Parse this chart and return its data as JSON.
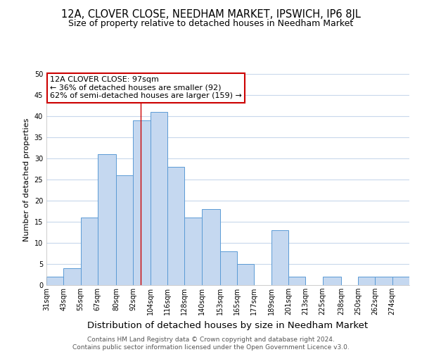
{
  "title": "12A, CLOVER CLOSE, NEEDHAM MARKET, IPSWICH, IP6 8JL",
  "subtitle": "Size of property relative to detached houses in Needham Market",
  "xlabel": "Distribution of detached houses by size in Needham Market",
  "ylabel": "Number of detached properties",
  "bin_labels": [
    "31sqm",
    "43sqm",
    "55sqm",
    "67sqm",
    "80sqm",
    "92sqm",
    "104sqm",
    "116sqm",
    "128sqm",
    "140sqm",
    "153sqm",
    "165sqm",
    "177sqm",
    "189sqm",
    "201sqm",
    "213sqm",
    "225sqm",
    "238sqm",
    "250sqm",
    "262sqm",
    "274sqm"
  ],
  "bin_edges": [
    31,
    43,
    55,
    67,
    80,
    92,
    104,
    116,
    128,
    140,
    153,
    165,
    177,
    189,
    201,
    213,
    225,
    238,
    250,
    262,
    274
  ],
  "bar_heights": [
    2,
    4,
    16,
    31,
    26,
    39,
    41,
    28,
    16,
    18,
    8,
    5,
    0,
    13,
    2,
    0,
    2,
    0,
    2,
    2,
    2
  ],
  "bar_color": "#c5d8f0",
  "bar_edge_color": "#5b9bd5",
  "grid_color": "#c8d8ec",
  "annotation_box_text": "12A CLOVER CLOSE: 97sqm\n← 36% of detached houses are smaller (92)\n62% of semi-detached houses are larger (159) →",
  "annotation_box_edge_color": "#cc0000",
  "vline_x": 97,
  "vline_color": "#cc0000",
  "ylim": [
    0,
    50
  ],
  "yticks": [
    0,
    5,
    10,
    15,
    20,
    25,
    30,
    35,
    40,
    45,
    50
  ],
  "footer_line1": "Contains HM Land Registry data © Crown copyright and database right 2024.",
  "footer_line2": "Contains public sector information licensed under the Open Government Licence v3.0.",
  "bg_color": "#ffffff",
  "title_fontsize": 10.5,
  "subtitle_fontsize": 9,
  "xlabel_fontsize": 9.5,
  "ylabel_fontsize": 8,
  "tick_fontsize": 7,
  "annotation_fontsize": 8,
  "footer_fontsize": 6.5
}
